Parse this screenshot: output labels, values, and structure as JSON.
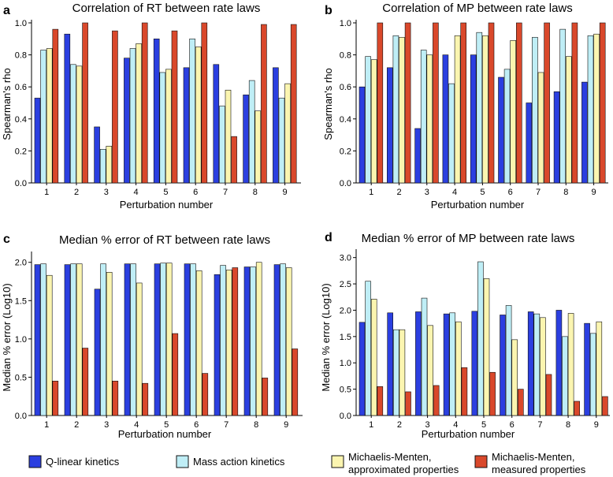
{
  "colors": {
    "series": [
      "#2b3fe0",
      "#bfeef6",
      "#fbf5b0",
      "#d9482b"
    ],
    "stroke": "#111111"
  },
  "legend": {
    "items": [
      {
        "lines": [
          "Q-linear kinetics"
        ],
        "color": "#2b3fe0"
      },
      {
        "lines": [
          "Mass action kinetics"
        ],
        "color": "#bfeef6"
      },
      {
        "lines": [
          "Michaelis-Menten,",
          "approximated properties"
        ],
        "color": "#fbf5b0"
      },
      {
        "lines": [
          "Michaelis-Menten,",
          "measured properties"
        ],
        "color": "#d9482b"
      }
    ]
  },
  "chart_data": [
    {
      "type": "bar",
      "panel": "a",
      "title": "Correlation of RT between rate laws",
      "xlabel": "Perturbation number",
      "ylabel": "Spearman's rho",
      "categories": [
        "1",
        "2",
        "3",
        "4",
        "5",
        "6",
        "7",
        "8",
        "9"
      ],
      "ylim": [
        0,
        1.0
      ],
      "yticks": [
        0.0,
        0.2,
        0.4,
        0.6,
        0.8,
        1.0
      ],
      "ytick_labels": [
        "0.0",
        "0.2",
        "0.4",
        "0.6",
        "0.8",
        "1.0"
      ],
      "series": [
        {
          "name": "Q-linear kinetics",
          "values": [
            0.53,
            0.93,
            0.35,
            0.78,
            0.9,
            0.72,
            0.74,
            0.55,
            0.72
          ]
        },
        {
          "name": "Mass action kinetics",
          "values": [
            0.83,
            0.74,
            0.21,
            0.84,
            0.69,
            0.9,
            0.48,
            0.64,
            0.53
          ]
        },
        {
          "name": "Michaelis-Menten, approximated properties",
          "values": [
            0.84,
            0.73,
            0.23,
            0.87,
            0.71,
            0.85,
            0.58,
            0.45,
            0.62
          ]
        },
        {
          "name": "Michaelis-Menten, measured properties",
          "values": [
            0.96,
            1.0,
            0.95,
            1.0,
            0.95,
            1.0,
            0.29,
            0.99,
            0.99
          ]
        }
      ]
    },
    {
      "type": "bar",
      "panel": "b",
      "title": "Correlation of MP between rate laws",
      "xlabel": "Perturbation number",
      "ylabel": "Spearman's rho",
      "categories": [
        "1",
        "2",
        "3",
        "4",
        "5",
        "6",
        "7",
        "8",
        "9"
      ],
      "ylim": [
        0,
        1.0
      ],
      "yticks": [
        0.0,
        0.2,
        0.4,
        0.6,
        0.8,
        1.0
      ],
      "ytick_labels": [
        "0.0",
        "0.2",
        "0.4",
        "0.6",
        "0.8",
        "1.0"
      ],
      "series": [
        {
          "name": "Q-linear kinetics",
          "values": [
            0.6,
            0.72,
            0.34,
            0.8,
            0.8,
            0.66,
            0.5,
            0.57,
            0.63
          ]
        },
        {
          "name": "Mass action kinetics",
          "values": [
            0.79,
            0.92,
            0.83,
            0.62,
            0.94,
            0.71,
            0.91,
            0.96,
            0.92
          ]
        },
        {
          "name": "Michaelis-Menten, approximated properties",
          "values": [
            0.77,
            0.91,
            0.8,
            0.92,
            0.92,
            0.89,
            0.69,
            0.79,
            0.93
          ]
        },
        {
          "name": "Michaelis-Menten, measured properties",
          "values": [
            1.0,
            1.0,
            1.0,
            1.0,
            1.0,
            1.0,
            1.0,
            1.0,
            1.0
          ]
        }
      ]
    },
    {
      "type": "bar",
      "panel": "c",
      "title": "Median % error of RT between rate laws",
      "xlabel": "Perturbation number",
      "ylabel": "Median % error (Log10)",
      "categories": [
        "1",
        "2",
        "3",
        "4",
        "5",
        "6",
        "7",
        "8",
        "9"
      ],
      "ylim": [
        0,
        2.1
      ],
      "yticks": [
        0.0,
        0.5,
        1.0,
        1.5,
        2.0
      ],
      "ytick_labels": [
        "0.0",
        "0.5",
        "1.0",
        "1.5",
        "2.0"
      ],
      "series": [
        {
          "name": "Q-linear kinetics",
          "values": [
            1.97,
            1.97,
            1.65,
            1.98,
            1.98,
            1.98,
            1.84,
            1.94,
            1.97
          ]
        },
        {
          "name": "Mass action kinetics",
          "values": [
            1.98,
            1.98,
            1.98,
            1.98,
            1.99,
            1.98,
            1.96,
            1.94,
            1.98
          ]
        },
        {
          "name": "Michaelis-Menten, approximated properties",
          "values": [
            1.83,
            1.98,
            1.87,
            1.73,
            1.99,
            1.89,
            1.9,
            2.0,
            1.93
          ]
        },
        {
          "name": "Michaelis-Menten, measured properties",
          "values": [
            0.45,
            0.88,
            0.45,
            0.42,
            1.07,
            0.55,
            1.93,
            0.49,
            0.87
          ]
        }
      ]
    },
    {
      "type": "bar",
      "panel": "d",
      "title": "Median % error of MP between rate laws",
      "xlabel": "Perturbation number",
      "ylabel": "Median % error (Log10)",
      "categories": [
        "1",
        "2",
        "3",
        "4",
        "5",
        "6",
        "7",
        "8",
        "9"
      ],
      "ylim": [
        0,
        3.1
      ],
      "yticks": [
        0.0,
        0.5,
        1.0,
        1.5,
        2.0,
        2.5,
        3.0
      ],
      "ytick_labels": [
        "0.0",
        "0.5",
        "1.0",
        "1.5",
        "2.0",
        "2.5",
        "3.0"
      ],
      "series": [
        {
          "name": "Q-linear kinetics",
          "values": [
            1.77,
            1.95,
            1.97,
            1.93,
            1.98,
            1.91,
            1.97,
            2.0,
            1.75
          ]
        },
        {
          "name": "Mass action kinetics",
          "values": [
            2.55,
            1.63,
            2.23,
            1.95,
            2.92,
            2.09,
            1.93,
            1.5,
            1.56
          ]
        },
        {
          "name": "Michaelis-Menten, approximated properties",
          "values": [
            2.21,
            1.63,
            1.71,
            1.78,
            2.6,
            1.44,
            1.86,
            1.94,
            1.78
          ]
        },
        {
          "name": "Michaelis-Menten, measured properties",
          "values": [
            0.55,
            0.45,
            0.57,
            0.91,
            0.82,
            0.5,
            0.78,
            0.27,
            0.36
          ]
        }
      ]
    }
  ]
}
